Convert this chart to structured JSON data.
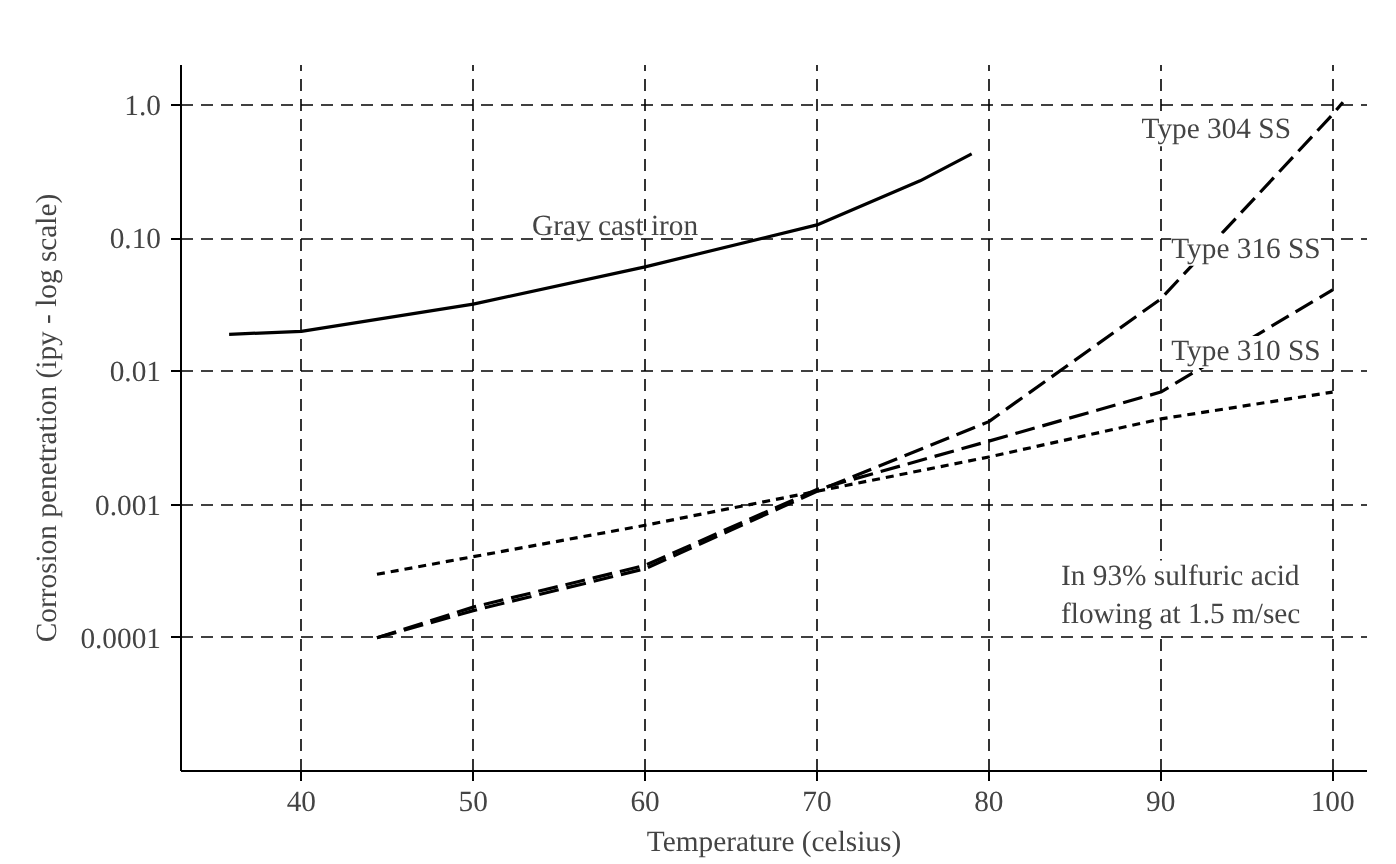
{
  "chart_data": {
    "type": "line",
    "xlabel": "Temperature (celsius)",
    "ylabel": "Corrosion penetration (ipy - log scale)",
    "log": "y",
    "grid": true,
    "marker": "none",
    "xlim": [
      33,
      102
    ],
    "xticks": [
      40,
      50,
      60,
      70,
      80,
      90,
      100
    ],
    "ylim": [
      1e-05,
      2
    ],
    "yticks": [
      {
        "value": 1,
        "label": "1.0"
      },
      {
        "value": 0.1,
        "label": "0.10"
      },
      0.01,
      0.001,
      0.0001
    ],
    "series": [
      {
        "name": "Gray cast iron",
        "color": "#000000",
        "line_style": "solid",
        "x": [
          35.8,
          40,
          50,
          60,
          70,
          76,
          79
        ],
        "values": [
          0.019,
          0.02,
          0.032,
          0.061,
          0.126,
          0.27,
          0.43
        ]
      },
      {
        "name": "Type 304 SS",
        "color": "#000000",
        "line_style": "dashed",
        "x": [
          44.4,
          50,
          60,
          70,
          80,
          90,
          100,
          100.6
        ],
        "values": [
          0.0001,
          0.00016,
          0.00033,
          0.00126,
          0.0042,
          0.035,
          0.85,
          1.05
        ]
      },
      {
        "name": "Type 316 SS",
        "color": "#000000",
        "line_style": "dashed",
        "x": [
          44.4,
          50,
          60,
          70,
          80,
          90,
          100
        ],
        "values": [
          0.0001,
          0.00017,
          0.00035,
          0.0013,
          0.003,
          0.007,
          0.041
        ]
      },
      {
        "name": "Type 310 SS",
        "color": "#000000",
        "line_style": "dotted",
        "x": [
          44.4,
          60,
          70,
          80,
          90,
          100
        ],
        "values": [
          0.0003,
          0.0007,
          0.00126,
          0.00228,
          0.0044,
          0.007
        ]
      }
    ],
    "annotations": [
      "In 93% sulfuric acid\nflowing at 1.5 m/sec"
    ]
  }
}
